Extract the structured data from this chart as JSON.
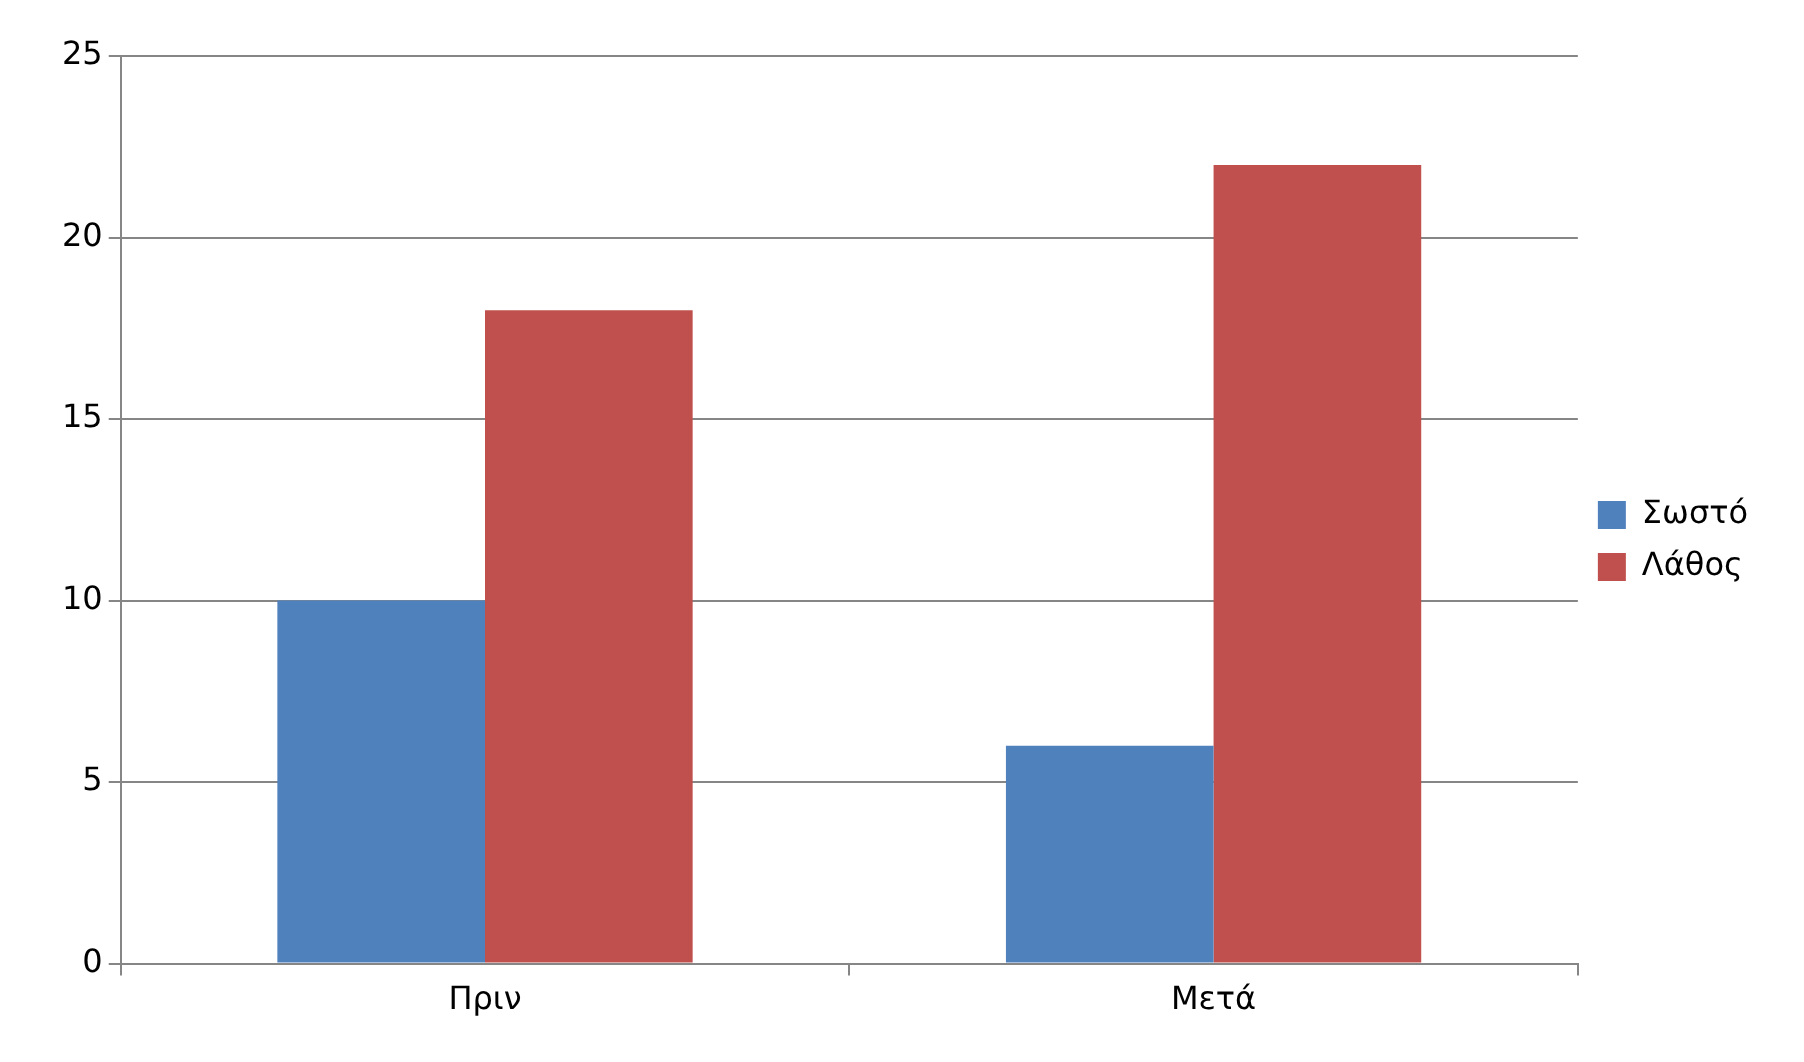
{
  "chart_data": {
    "type": "bar",
    "categories": [
      "Πριν",
      "Μετά"
    ],
    "series": [
      {
        "name": "Σωστό",
        "color": "#4f81bd",
        "values": [
          10,
          6
        ]
      },
      {
        "name": "Λάθος",
        "color": "#c0504d",
        "values": [
          18,
          22
        ]
      }
    ],
    "ylim": [
      0,
      25
    ],
    "yticks": [
      0,
      5,
      10,
      15,
      20,
      25
    ],
    "grid": "y",
    "legend": "right"
  }
}
